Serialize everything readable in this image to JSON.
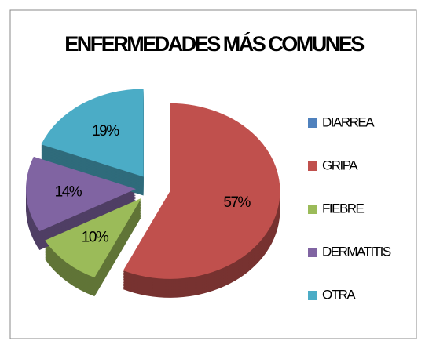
{
  "chart_data": {
    "type": "pie",
    "title": "ENFERMEDADES MÁS COMUNES",
    "categories": [
      "DIARREA",
      "GRIPA",
      "FIEBRE",
      "DERMATITIS",
      "OTRA"
    ],
    "values": [
      0,
      57,
      10,
      14,
      19
    ],
    "value_labels": [
      null,
      "57%",
      "10%",
      "14%",
      "19%"
    ],
    "colors": [
      "#4f81bd",
      "#c0504d",
      "#9bbb59",
      "#8064a2",
      "#4bacc6"
    ],
    "legend": "right"
  }
}
